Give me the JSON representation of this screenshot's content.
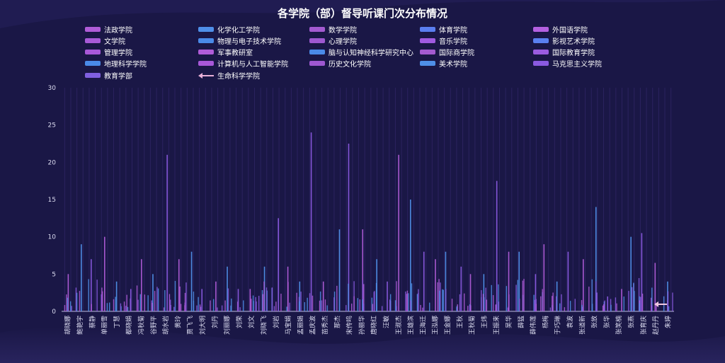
{
  "chart_data": {
    "type": "bar",
    "title": "各学院（部）督导听课门次分布情况",
    "ylim": [
      0,
      30
    ],
    "yticks": [
      0,
      5,
      10,
      15,
      20,
      25,
      30
    ],
    "legend_placement": "top",
    "grid": false,
    "colors": {
      "background": "#1a1746",
      "bar_purple": "#b05cd8",
      "bar_blue": "#4f8fe8",
      "bar_violet": "#8a5ae0",
      "axis": "#bdbde0"
    },
    "legend": [
      {
        "name": "法政学院",
        "color": "#b05cd8"
      },
      {
        "name": "化学化工学院",
        "color": "#4f8fe8"
      },
      {
        "name": "数学学院",
        "color": "#a45ad0"
      },
      {
        "name": "体育学院",
        "color": "#5a7ef0"
      },
      {
        "name": "外国语学院",
        "color": "#b460e0"
      },
      {
        "name": "文学院",
        "color": "#a85ad8"
      },
      {
        "name": "物理与电子技术学院",
        "color": "#4a8ae8"
      },
      {
        "name": "心理学院",
        "color": "#9e58d0"
      },
      {
        "name": "音乐学院",
        "color": "#a05ae0"
      },
      {
        "name": "影视艺术学院",
        "color": "#5a80f0"
      },
      {
        "name": "管理学院",
        "color": "#a858d8"
      },
      {
        "name": "军事教研室",
        "color": "#b05cd8"
      },
      {
        "name": "脑与认知神经科学研究中心",
        "color": "#4a8ae8"
      },
      {
        "name": "国际商学院",
        "color": "#a45ad0"
      },
      {
        "name": "国际教育学院",
        "color": "#9a5ce0"
      },
      {
        "name": "地理科学学院",
        "color": "#4a8ae8"
      },
      {
        "name": "计算机与人工智能学院",
        "color": "#a858d8"
      },
      {
        "name": "历史文化学院",
        "color": "#9e58d0"
      },
      {
        "name": "美术学院",
        "color": "#4f8fe8"
      },
      {
        "name": "马克思主义学院",
        "color": "#8a5ae0"
      },
      {
        "name": "教育学部",
        "color": "#8060e0"
      },
      {
        "name": "生命科学学院",
        "color": "#e8b0d8",
        "symbol": "arrow"
      }
    ],
    "categories": [
      "胡晓娜",
      "鲍艳宇",
      "蔡静",
      "单丽雪",
      "丁慧",
      "都晓娟",
      "冯秋菊",
      "谷野平",
      "胡水岩",
      "黄玲",
      "贾飞飞",
      "刘大明",
      "刘丹",
      "刘丽娜",
      "刘荣",
      "刘文",
      "刘晓飞",
      "刘岩",
      "马宝娟",
      "孟丽娟",
      "孟庆波",
      "苗秀杰",
      "那杰",
      "宋传鸣",
      "孙丽华",
      "唐晓红",
      "汪敏",
      "王淑杰",
      "王雄滨",
      "王海迁",
      "王泓娜",
      "王金娜",
      "王秋",
      "王秋菊",
      "王炜",
      "王振来",
      "吴华",
      "薛猛",
      "薛伟莲",
      "杨梅",
      "于巧琳",
      "袁波",
      "张道新",
      "张放",
      "张华",
      "张笑楠",
      "张燕",
      "张育庆",
      "赵丹丹",
      "朱婷"
    ],
    "group_totals": [
      5,
      9,
      7,
      10,
      4,
      3,
      7,
      5,
      21,
      7,
      8,
      3,
      4,
      6,
      3,
      3,
      6,
      12.5,
      6,
      4,
      24,
      4,
      11,
      22.5,
      11,
      7,
      4,
      21,
      15,
      8,
      7,
      8,
      6,
      5,
      5,
      17.5,
      8,
      8,
      5,
      9,
      4,
      8,
      7,
      14,
      2,
      3,
      10,
      10.5,
      6.5,
      4
    ]
  }
}
